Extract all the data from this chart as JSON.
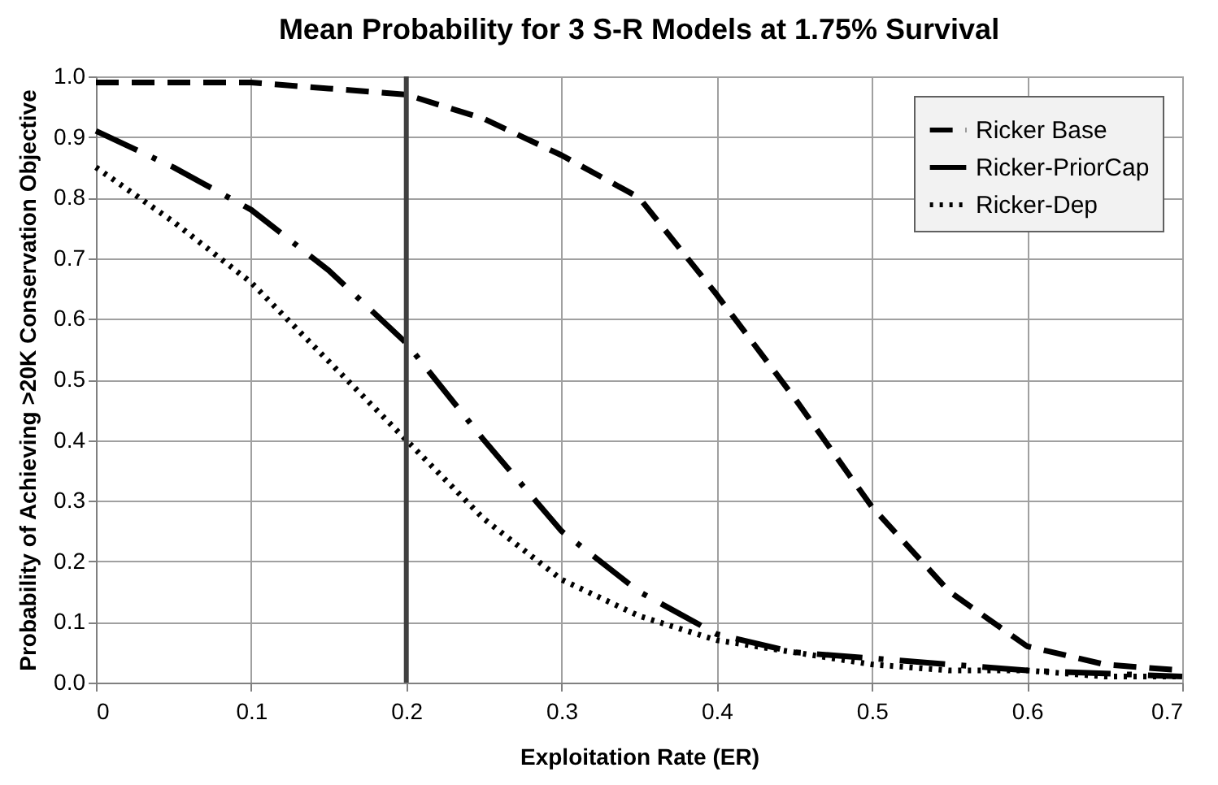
{
  "chart_data": {
    "type": "line",
    "title": "Mean Probability for 3 S-R Models at 1.75% Survival",
    "xlabel": "Exploitation Rate (ER)",
    "ylabel": "Probability of Achieving >20K Conservation Objective",
    "x": [
      0,
      0.05,
      0.1,
      0.15,
      0.2,
      0.25,
      0.3,
      0.35,
      0.4,
      0.45,
      0.5,
      0.55,
      0.6,
      0.65,
      0.7
    ],
    "series": [
      {
        "name": "Ricker Base",
        "color": "#000000",
        "line_style": "dashed",
        "values": [
          0.99,
          0.99,
          0.99,
          0.98,
          0.97,
          0.93,
          0.87,
          0.8,
          0.64,
          0.47,
          0.29,
          0.15,
          0.06,
          0.03,
          0.02
        ]
      },
      {
        "name": "Ricker-PriorCap",
        "color": "#000000",
        "line_style": "dashed",
        "values": [
          0.91,
          0.85,
          0.78,
          0.68,
          0.56,
          0.4,
          0.25,
          0.15,
          0.08,
          0.05,
          0.04,
          0.03,
          0.02,
          0.015,
          0.01
        ]
      },
      {
        "name": "Ricker-Dep",
        "color": "#000000",
        "line_style": "dotted",
        "values": [
          0.85,
          0.76,
          0.66,
          0.53,
          0.4,
          0.27,
          0.17,
          0.11,
          0.07,
          0.05,
          0.03,
          0.02,
          0.02,
          0.01,
          0.01
        ]
      }
    ],
    "xlim": [
      0,
      0.7
    ],
    "xticks": [
      0,
      0.1,
      0.2,
      0.3,
      0.4,
      0.5,
      0.6,
      0.7
    ],
    "ylim": [
      0,
      1
    ],
    "yticks": [
      {
        "value": 0,
        "label": "0.0"
      },
      0.1,
      0.2,
      0.3,
      0.4,
      0.5,
      0.6,
      0.7,
      0.8,
      0.9,
      {
        "value": 1,
        "label": "1.0"
      }
    ],
    "ref_lines": [
      {
        "axis": "x",
        "value": 0.2,
        "color": "#404040"
      }
    ],
    "grid": true,
    "legend": "top right",
    "marker": "none"
  }
}
